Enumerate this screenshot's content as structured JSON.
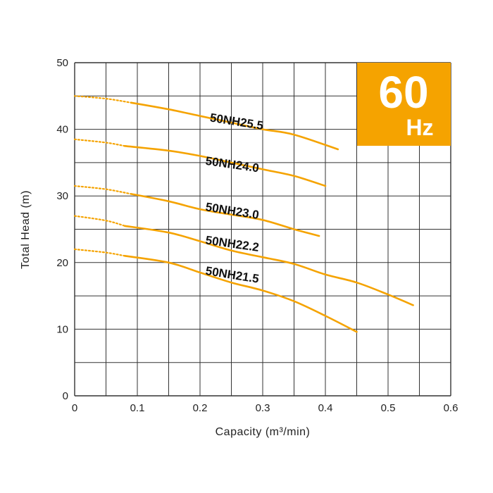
{
  "chart_data": {
    "type": "line",
    "xlabel": "Capacity (m³/min)",
    "ylabel": "Total Head (m)",
    "xlim": [
      0,
      0.6
    ],
    "ylim": [
      0,
      50
    ],
    "x_ticks": [
      "0",
      "0.1",
      "0.2",
      "0.3",
      "0.4",
      "0.5",
      "0.6"
    ],
    "y_ticks": [
      "0",
      "10",
      "20",
      "30",
      "40",
      "50"
    ],
    "grid": true,
    "badge": {
      "value": "60",
      "unit": "Hz"
    },
    "colors": {
      "curve": "#F5A300",
      "badge": "#F5A300",
      "grid": "#333333"
    },
    "series": [
      {
        "name": "50NH25.5",
        "dotted": [
          [
            0,
            45
          ],
          [
            0.05,
            44.6
          ],
          [
            0.09,
            44
          ]
        ],
        "values": [
          [
            0.09,
            44
          ],
          [
            0.15,
            43
          ],
          [
            0.2,
            42
          ],
          [
            0.25,
            41
          ],
          [
            0.3,
            40
          ],
          [
            0.35,
            39.2
          ],
          [
            0.42,
            37
          ]
        ]
      },
      {
        "name": "50NH24.0",
        "dotted": [
          [
            0,
            38.5
          ],
          [
            0.05,
            38
          ],
          [
            0.08,
            37.5
          ]
        ],
        "values": [
          [
            0.08,
            37.5
          ],
          [
            0.15,
            36.8
          ],
          [
            0.2,
            36
          ],
          [
            0.25,
            35
          ],
          [
            0.3,
            34
          ],
          [
            0.35,
            33
          ],
          [
            0.4,
            31.5
          ]
        ]
      },
      {
        "name": "50NH23.0",
        "dotted": [
          [
            0,
            31.5
          ],
          [
            0.05,
            31
          ],
          [
            0.09,
            30.3
          ]
        ],
        "values": [
          [
            0.09,
            30.3
          ],
          [
            0.15,
            29.2
          ],
          [
            0.2,
            28
          ],
          [
            0.25,
            27.2
          ],
          [
            0.3,
            26.4
          ],
          [
            0.35,
            25
          ],
          [
            0.39,
            24
          ]
        ]
      },
      {
        "name": "50NH22.2",
        "dotted": [
          [
            0,
            27
          ],
          [
            0.05,
            26.3
          ],
          [
            0.08,
            25.5
          ]
        ],
        "values": [
          [
            0.08,
            25.5
          ],
          [
            0.15,
            24.5
          ],
          [
            0.2,
            23.2
          ],
          [
            0.25,
            21.8
          ],
          [
            0.3,
            20.8
          ],
          [
            0.35,
            19.8
          ],
          [
            0.4,
            18.2
          ],
          [
            0.45,
            17
          ],
          [
            0.5,
            15.2
          ],
          [
            0.54,
            13.6
          ]
        ]
      },
      {
        "name": "50NH21.5",
        "dotted": [
          [
            0,
            22
          ],
          [
            0.05,
            21.5
          ],
          [
            0.08,
            21
          ]
        ],
        "values": [
          [
            0.08,
            21
          ],
          [
            0.15,
            20
          ],
          [
            0.2,
            18.5
          ],
          [
            0.25,
            17
          ],
          [
            0.3,
            15.8
          ],
          [
            0.35,
            14.2
          ],
          [
            0.4,
            12
          ],
          [
            0.45,
            9.6
          ]
        ]
      }
    ]
  }
}
